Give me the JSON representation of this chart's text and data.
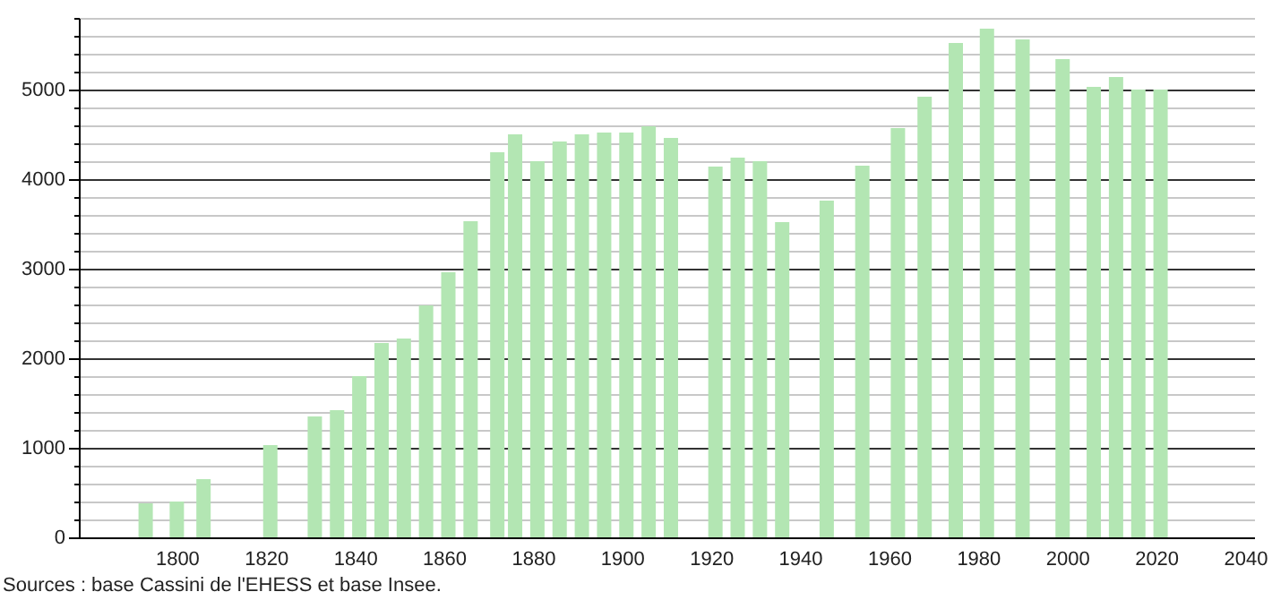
{
  "chart_data": {
    "type": "bar",
    "x": [
      1793,
      1800,
      1806,
      1821,
      1831,
      1836,
      1841,
      1846,
      1851,
      1856,
      1861,
      1866,
      1872,
      1876,
      1881,
      1886,
      1891,
      1896,
      1901,
      1906,
      1911,
      1921,
      1926,
      1931,
      1936,
      1946,
      1954,
      1962,
      1968,
      1975,
      1982,
      1990,
      1999,
      2006,
      2011,
      2016,
      2021
    ],
    "values": [
      380,
      400,
      650,
      1030,
      1350,
      1420,
      1800,
      2170,
      2220,
      2590,
      2960,
      3530,
      4300,
      4500,
      4200,
      4420,
      4500,
      4520,
      4520,
      4590,
      4460,
      4140,
      4240,
      4200,
      3520,
      3760,
      4150,
      4570,
      4920,
      5520,
      5680,
      5560,
      5340,
      5030,
      5140,
      5000,
      5000
    ],
    "color": "#b3e6b3",
    "xlim": [
      1780,
      2040
    ],
    "xticks": [
      1800,
      1820,
      1840,
      1860,
      1880,
      1900,
      1920,
      1940,
      1960,
      1980,
      2000,
      2020,
      2040
    ],
    "ylim": [
      0,
      5800
    ],
    "yticks": [
      0,
      {
        "value": 200,
        "label": null
      },
      {
        "value": 400,
        "label": null
      },
      {
        "value": 600,
        "label": null
      },
      {
        "value": 800,
        "label": null
      },
      1000,
      {
        "value": 1200,
        "label": null
      },
      {
        "value": 1400,
        "label": null
      },
      {
        "value": 1600,
        "label": null
      },
      {
        "value": 1800,
        "label": null
      },
      2000,
      {
        "value": 2200,
        "label": null
      },
      {
        "value": 2400,
        "label": null
      },
      {
        "value": 2600,
        "label": null
      },
      {
        "value": 2800,
        "label": null
      },
      3000,
      {
        "value": 3200,
        "label": null
      },
      {
        "value": 3400,
        "label": null
      },
      {
        "value": 3600,
        "label": null
      },
      {
        "value": 3800,
        "label": null
      },
      4000,
      {
        "value": 4200,
        "label": null
      },
      {
        "value": 4400,
        "label": null
      },
      {
        "value": 4600,
        "label": null
      },
      {
        "value": 4800,
        "label": null
      },
      5000,
      {
        "value": 5200,
        "label": null
      },
      {
        "value": 5400,
        "label": null
      },
      {
        "value": 5600,
        "label": null
      },
      {
        "value": 5800,
        "label": null
      }
    ],
    "grid": "y",
    "annotations": [
      "Sources : base Cassini de l'EHESS et base Insee."
    ]
  }
}
